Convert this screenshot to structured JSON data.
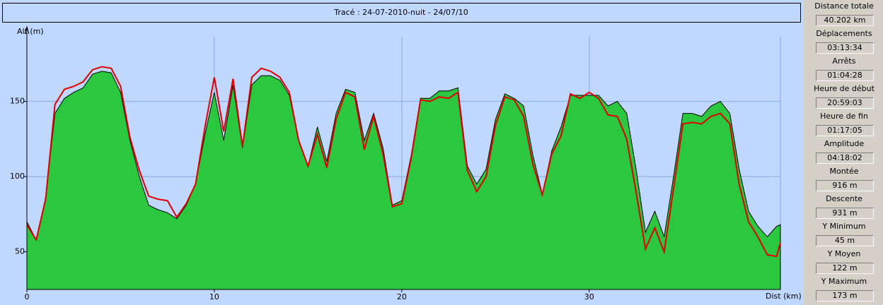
{
  "chart_data": {
    "type": "area-line",
    "title": "Tracé : 24-07-2010-nuit - 24/07/10",
    "ylabel": "Alt (m)",
    "xlabel": "Dist (km)",
    "x": [
      0,
      0.5,
      1,
      1.5,
      2,
      2.5,
      3,
      3.5,
      4,
      4.5,
      5,
      5.5,
      6,
      6.5,
      7,
      7.5,
      8,
      8.5,
      9,
      9.5,
      10,
      10.5,
      11,
      11.5,
      12,
      12.5,
      13,
      13.5,
      14,
      14.5,
      15,
      15.5,
      16,
      16.5,
      17,
      17.5,
      18,
      18.5,
      19,
      19.5,
      20,
      20.5,
      21,
      21.5,
      22,
      22.5,
      23,
      23.5,
      24,
      24.5,
      25,
      25.5,
      26,
      26.5,
      27,
      27.5,
      28,
      28.5,
      29,
      29.5,
      30,
      30.5,
      31,
      31.5,
      32,
      32.5,
      33,
      33.5,
      34,
      34.5,
      35,
      35.5,
      36,
      36.5,
      37,
      37.5,
      38,
      38.5,
      39,
      39.5,
      40,
      40.2
    ],
    "series": [
      {
        "color": "#2ac73f",
        "values": [
          70,
          58,
          86,
          142,
          152,
          156,
          159,
          168,
          170,
          169,
          156,
          124,
          100,
          81,
          78,
          76,
          72,
          81,
          95,
          128,
          156,
          124,
          161,
          119,
          161,
          167,
          167,
          164,
          154,
          124,
          107,
          133,
          110,
          142,
          158,
          156,
          124,
          142,
          119,
          81,
          84,
          114,
          152,
          152,
          157,
          157,
          159,
          107,
          95,
          105,
          138,
          155,
          152,
          147,
          114,
          88,
          117,
          133,
          154,
          154,
          154,
          154,
          147,
          150,
          142,
          105,
          63,
          77,
          60,
          100,
          142,
          142,
          140,
          147,
          150,
          142,
          105,
          77,
          67,
          60,
          67,
          68
        ]
      },
      {
        "color": "#e00000",
        "values": [
          68,
          58,
          85,
          148,
          158,
          160,
          163,
          171,
          173,
          172,
          160,
          126,
          104,
          87,
          85,
          84,
          73,
          82,
          95,
          133,
          166,
          130,
          165,
          120,
          166,
          172,
          170,
          166,
          156,
          124,
          107,
          128,
          106,
          138,
          156,
          153,
          118,
          140,
          115,
          80,
          82,
          112,
          151,
          150,
          153,
          152,
          156,
          104,
          90,
          100,
          134,
          153,
          151,
          140,
          108,
          88,
          115,
          127,
          155,
          152,
          156,
          152,
          141,
          140,
          125,
          90,
          52,
          66,
          50,
          92,
          135,
          136,
          135,
          140,
          142,
          135,
          95,
          70,
          60,
          48,
          47,
          56
        ]
      }
    ],
    "xlim": [
      0,
      40.2
    ],
    "ylim": [
      25,
      200
    ],
    "xticks": [
      0,
      10,
      20,
      30
    ],
    "yticks": [
      50,
      100,
      150
    ],
    "grid": true
  },
  "panel": {
    "stats": [
      {
        "label": "Distance totale",
        "value": "40.202 km"
      },
      {
        "label": "Déplacements",
        "value": "03:13:34"
      },
      {
        "label": "Arrêts",
        "value": "01:04:28"
      },
      {
        "label": "Heure de début",
        "value": "20:59:03"
      },
      {
        "label": "Heure de fin",
        "value": "01:17:05"
      },
      {
        "label": "Amplitude",
        "value": "04:18:02"
      },
      {
        "label": "Montée",
        "value": "916 m"
      },
      {
        "label": "Descente",
        "value": "931 m"
      },
      {
        "label": "Y Minimum",
        "value": "45 m"
      },
      {
        "label": "Y Moyen",
        "value": "122 m"
      },
      {
        "label": "Y Maximum",
        "value": "173 m"
      }
    ]
  }
}
